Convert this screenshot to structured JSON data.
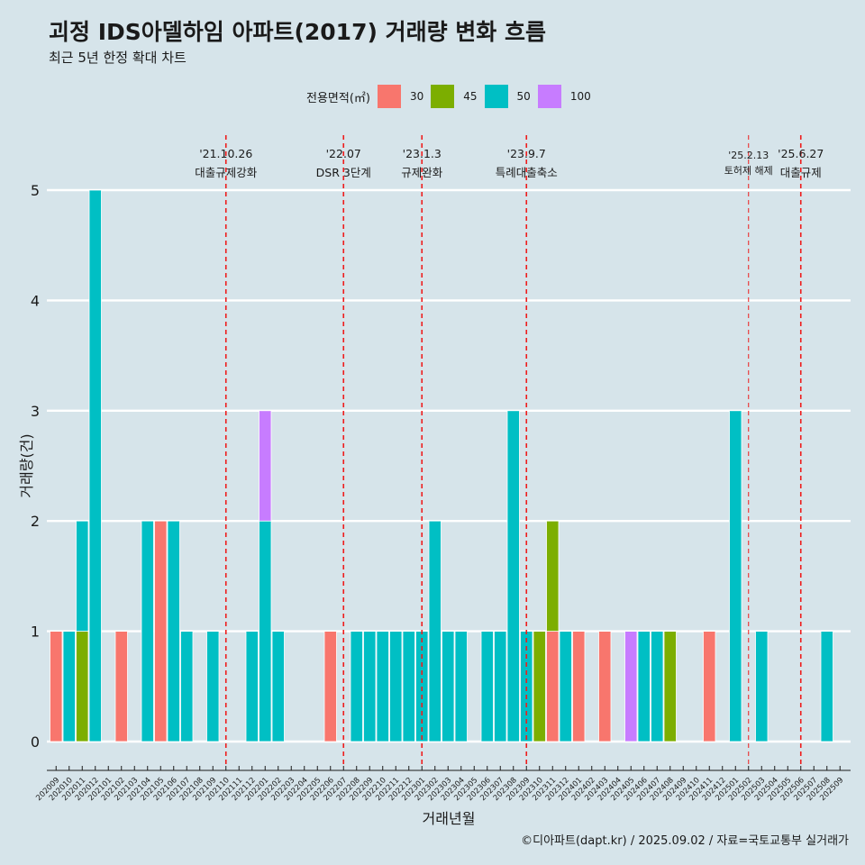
{
  "title": "괴정 IDS아델하임 아파트(2017) 거래량 변화 흐름",
  "subtitle": "최근 5년 한정 확대 차트",
  "caption": "©디아파트(dapt.kr) / 2025.09.02 / 자료=국토교통부 실거래가",
  "legend": {
    "title": "전용면적(㎡)",
    "items": [
      {
        "label": "30",
        "color": "#f8766d"
      },
      {
        "label": "45",
        "color": "#7cae00"
      },
      {
        "label": "50",
        "color": "#00bfc4"
      },
      {
        "label": "100",
        "color": "#c77cff"
      }
    ]
  },
  "chart_data": {
    "type": "bar",
    "xlabel": "거래년월",
    "ylabel": "거래량(건)",
    "ylim": [
      0,
      5
    ],
    "yticks": [
      0,
      1,
      2,
      3,
      4,
      5
    ],
    "categories": [
      "202009",
      "202010",
      "202011",
      "202012",
      "202101",
      "202102",
      "202103",
      "202104",
      "202105",
      "202106",
      "202107",
      "202108",
      "202109",
      "202110",
      "202111",
      "202112",
      "202201",
      "202202",
      "202203",
      "202204",
      "202205",
      "202206",
      "202207",
      "202208",
      "202209",
      "202210",
      "202211",
      "202212",
      "202301",
      "202302",
      "202303",
      "202304",
      "202305",
      "202306",
      "202307",
      "202308",
      "202309",
      "202310",
      "202311",
      "202312",
      "202401",
      "202402",
      "202403",
      "202404",
      "202405",
      "202406",
      "202407",
      "202408",
      "202409",
      "202410",
      "202411",
      "202412",
      "202501",
      "202502",
      "202503",
      "202504",
      "202505",
      "202506",
      "202507",
      "202508",
      "202509"
    ],
    "series": [
      {
        "name": "30",
        "color": "#f8766d",
        "values": [
          1,
          0,
          0,
          0,
          0,
          1,
          0,
          0,
          2,
          0,
          0,
          0,
          0,
          0,
          0,
          0,
          0,
          0,
          0,
          0,
          0,
          1,
          0,
          0,
          0,
          0,
          0,
          0,
          0,
          0,
          0,
          0,
          0,
          0,
          0,
          0,
          0,
          0,
          1,
          0,
          1,
          0,
          1,
          0,
          0,
          0,
          0,
          0,
          0,
          0,
          1,
          0,
          0,
          0,
          0,
          0,
          0,
          0,
          0,
          0,
          0
        ]
      },
      {
        "name": "45",
        "color": "#7cae00",
        "values": [
          0,
          0,
          1,
          0,
          0,
          0,
          0,
          0,
          0,
          0,
          0,
          0,
          0,
          0,
          0,
          0,
          0,
          0,
          0,
          0,
          0,
          0,
          0,
          0,
          0,
          0,
          0,
          0,
          0,
          0,
          0,
          0,
          0,
          0,
          0,
          0,
          0,
          1,
          1,
          0,
          0,
          0,
          0,
          0,
          0,
          0,
          0,
          1,
          0,
          0,
          0,
          0,
          0,
          0,
          0,
          0,
          0,
          0,
          0,
          0,
          0
        ]
      },
      {
        "name": "50",
        "color": "#00bfc4",
        "values": [
          0,
          1,
          1,
          5,
          0,
          0,
          0,
          2,
          0,
          2,
          1,
          0,
          1,
          0,
          0,
          1,
          2,
          1,
          0,
          0,
          0,
          0,
          0,
          1,
          1,
          1,
          1,
          1,
          1,
          2,
          1,
          1,
          0,
          1,
          1,
          3,
          1,
          0,
          0,
          1,
          0,
          0,
          0,
          0,
          0,
          1,
          1,
          0,
          0,
          0,
          0,
          0,
          3,
          0,
          1,
          0,
          0,
          0,
          0,
          1,
          0
        ]
      },
      {
        "name": "100",
        "color": "#c77cff",
        "values": [
          0,
          0,
          0,
          0,
          0,
          0,
          0,
          0,
          0,
          0,
          0,
          0,
          0,
          0,
          0,
          0,
          1,
          0,
          0,
          0,
          0,
          0,
          0,
          0,
          0,
          0,
          0,
          0,
          0,
          0,
          0,
          0,
          0,
          0,
          0,
          0,
          0,
          0,
          0,
          0,
          0,
          0,
          0,
          0,
          1,
          0,
          0,
          0,
          0,
          0,
          0,
          0,
          0,
          0,
          0,
          0,
          0,
          0,
          0,
          0,
          0
        ]
      }
    ],
    "events": [
      {
        "month": "202110",
        "date": "'21.10.26",
        "label": "대출규제강화"
      },
      {
        "month": "202207",
        "date": "'22.07",
        "label": "DSR 3단계"
      },
      {
        "month": "202301",
        "date": "'23.1.3",
        "label": "규제완화"
      },
      {
        "month": "202309",
        "date": "'23.9.7",
        "label": "특례대출축소"
      },
      {
        "month": "202502",
        "date": "'25.2.13",
        "label": "토허제 해제"
      },
      {
        "month": "202506",
        "date": "'25.6.27",
        "label": "대출규제"
      }
    ]
  }
}
